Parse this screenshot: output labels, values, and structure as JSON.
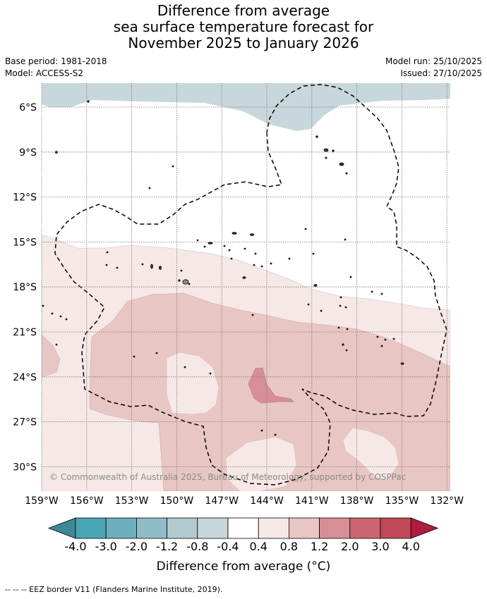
{
  "title": {
    "line1": "Difference from average",
    "line2": "sea surface temperature forecast for",
    "line3": "November 2025 to January 2026"
  },
  "meta": {
    "base_period": "Base period: 1981-2018",
    "model": "Model: ACCESS-S2",
    "model_run": "Model run: 25/10/2025",
    "issued": "Issued: 27/10/2025"
  },
  "map": {
    "lon_labels": [
      "159°W",
      "156°W",
      "153°W",
      "150°W",
      "147°W",
      "144°W",
      "141°W",
      "138°W",
      "135°W",
      "132°W"
    ],
    "lat_labels": [
      "6°S",
      "9°S",
      "12°S",
      "15°S",
      "18°S",
      "21°S",
      "24°S",
      "27°S",
      "30°S"
    ],
    "copyright": "© Commonwealth of Australia 2025, Bureau of Meteorology, supported by COSPPac"
  },
  "colorbar": {
    "labels": [
      "-4.0",
      "-3.0",
      "-2.0",
      "-1.2",
      "-0.8",
      "-0.4",
      "0.4",
      "0.8",
      "1.2",
      "2.0",
      "3.0",
      "4.0"
    ],
    "colors": [
      "#3f8893",
      "#4aa5b5",
      "#6daebc",
      "#8fbcc6",
      "#b1c9cf",
      "#c7d7dc",
      "#ffffff",
      "#f5e8e7",
      "#e8c6c3",
      "#d88e96",
      "#cc6672",
      "#c04858",
      "#b01c3c"
    ],
    "title": "Difference from average (°C)"
  },
  "legend": {
    "eez_text": "--  --  -- EEZ border V11 (Flanders Marine Institute, 2019)."
  }
}
